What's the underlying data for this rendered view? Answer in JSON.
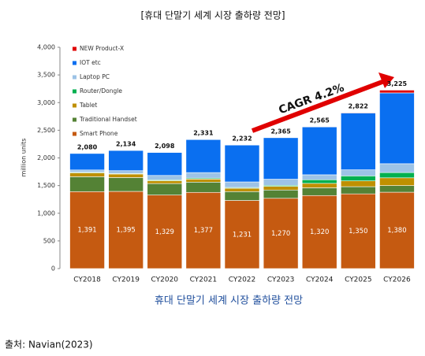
{
  "chart_data": {
    "type": "stacked_bar",
    "title": "[휴대 단말기 세계 시장 출하량 전망]",
    "caption": "휴대 단말기 세계 시장 출하량 전망",
    "source": "출처: Navian(2023)",
    "y_label": "million units",
    "annotation": "CAGR 4.2%",
    "categories": [
      "CY2018",
      "CY2019",
      "CY2020",
      "CY2021",
      "CY2022",
      "CY2023",
      "CY2024",
      "CY2025",
      "CY2026"
    ],
    "series": [
      {
        "name": "Smart Phone",
        "color": "#c55a11",
        "values": [
          1391,
          1395,
          1329,
          1377,
          1231,
          1270,
          1320,
          1350,
          1380
        ],
        "value_labels": [
          "1,391",
          "1,395",
          "1,329",
          "1,377",
          "1,231",
          "1,270",
          "1,320",
          "1,350",
          "1,380"
        ]
      },
      {
        "name": "Traditional Handset",
        "color": "#548235",
        "values": [
          269,
          250,
          208,
          185,
          160,
          150,
          140,
          130,
          120
        ]
      },
      {
        "name": "Tablet",
        "color": "#bf9000",
        "values": [
          70,
          64,
          51,
          56,
          61,
          67,
          80,
          105,
          140
        ]
      },
      {
        "name": "Router/Dongle",
        "color": "#00b050",
        "values": [
          12,
          10,
          15,
          17,
          14,
          18,
          65,
          90,
          95
        ]
      },
      {
        "name": "Laptop PC",
        "color": "#9dc3e6",
        "values": [
          40,
          50,
          80,
          100,
          100,
          110,
          90,
          110,
          160
        ]
      },
      {
        "name": "IOT etc",
        "color": "#0a6ff0",
        "values": [
          298,
          365,
          415,
          596,
          666,
          750,
          865,
          1027,
          1280
        ]
      },
      {
        "name": "NEW Product-X",
        "color": "#e00000",
        "values": [
          0,
          0,
          0,
          0,
          0,
          0,
          5,
          10,
          50
        ]
      }
    ],
    "totals": [
      2080,
      2134,
      2098,
      2331,
      2232,
      2365,
      2565,
      2822,
      3225
    ],
    "total_labels": [
      "2,080",
      "2,134",
      "2,098",
      "2,331",
      "2,232",
      "2,365",
      "2,565",
      "2,822",
      "3,225"
    ],
    "ylim": [
      0,
      4000
    ],
    "yticks": [
      0,
      500,
      {
        "value": 1000,
        "label": "1,000"
      },
      {
        "value": 1500,
        "label": "1,500"
      },
      {
        "value": 2000,
        "label": "2,000"
      },
      {
        "value": 2500,
        "label": "2,500"
      },
      {
        "value": 3000,
        "label": "3,000"
      },
      {
        "value": 3500,
        "label": "3,500"
      },
      {
        "value": 4000,
        "label": "4,000"
      }
    ],
    "legend": "top-left"
  }
}
